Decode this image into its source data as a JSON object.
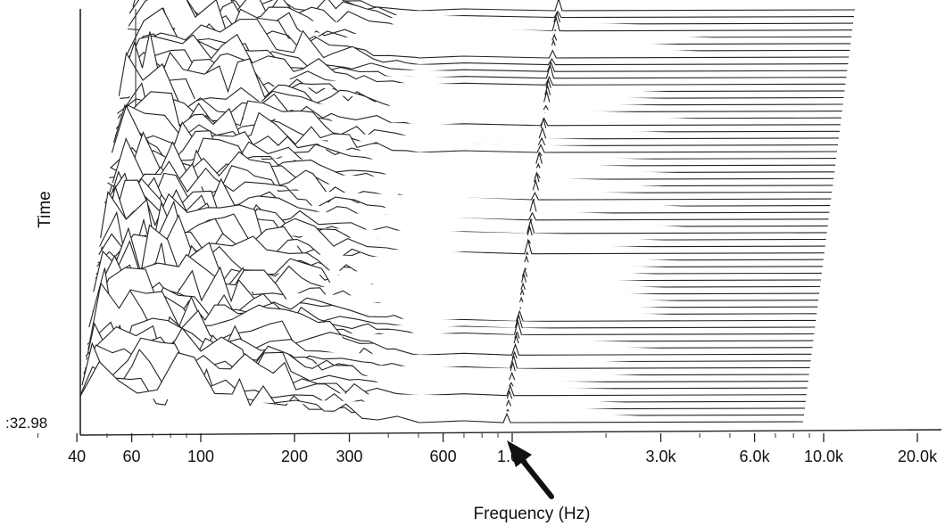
{
  "chart_data": {
    "type": "line",
    "subtype": "waterfall",
    "title": "",
    "xlabel": "Frequency (Hz)",
    "ylabel": "Time",
    "y_corner_label": ":32.98",
    "x_scale": "log",
    "x_ticks": [
      {
        "value": 40,
        "label": "40"
      },
      {
        "value": 60,
        "label": "60"
      },
      {
        "value": 100,
        "label": "100"
      },
      {
        "value": 200,
        "label": "200"
      },
      {
        "value": 300,
        "label": "300"
      },
      {
        "value": 600,
        "label": "600"
      },
      {
        "value": 1000,
        "label": "1.0k"
      },
      {
        "value": 3000,
        "label": "3.0k"
      },
      {
        "value": 6000,
        "label": "6.0k"
      },
      {
        "value": 10000,
        "label": "10.0k"
      },
      {
        "value": 20000,
        "label": "20.0k"
      }
    ],
    "xlim": [
      20,
      20000
    ],
    "grid": false,
    "annotation": {
      "kind": "arrow",
      "points_to_frequency": 1000
    },
    "colors": {
      "line": "#222222",
      "background": "#ffffff"
    }
  }
}
